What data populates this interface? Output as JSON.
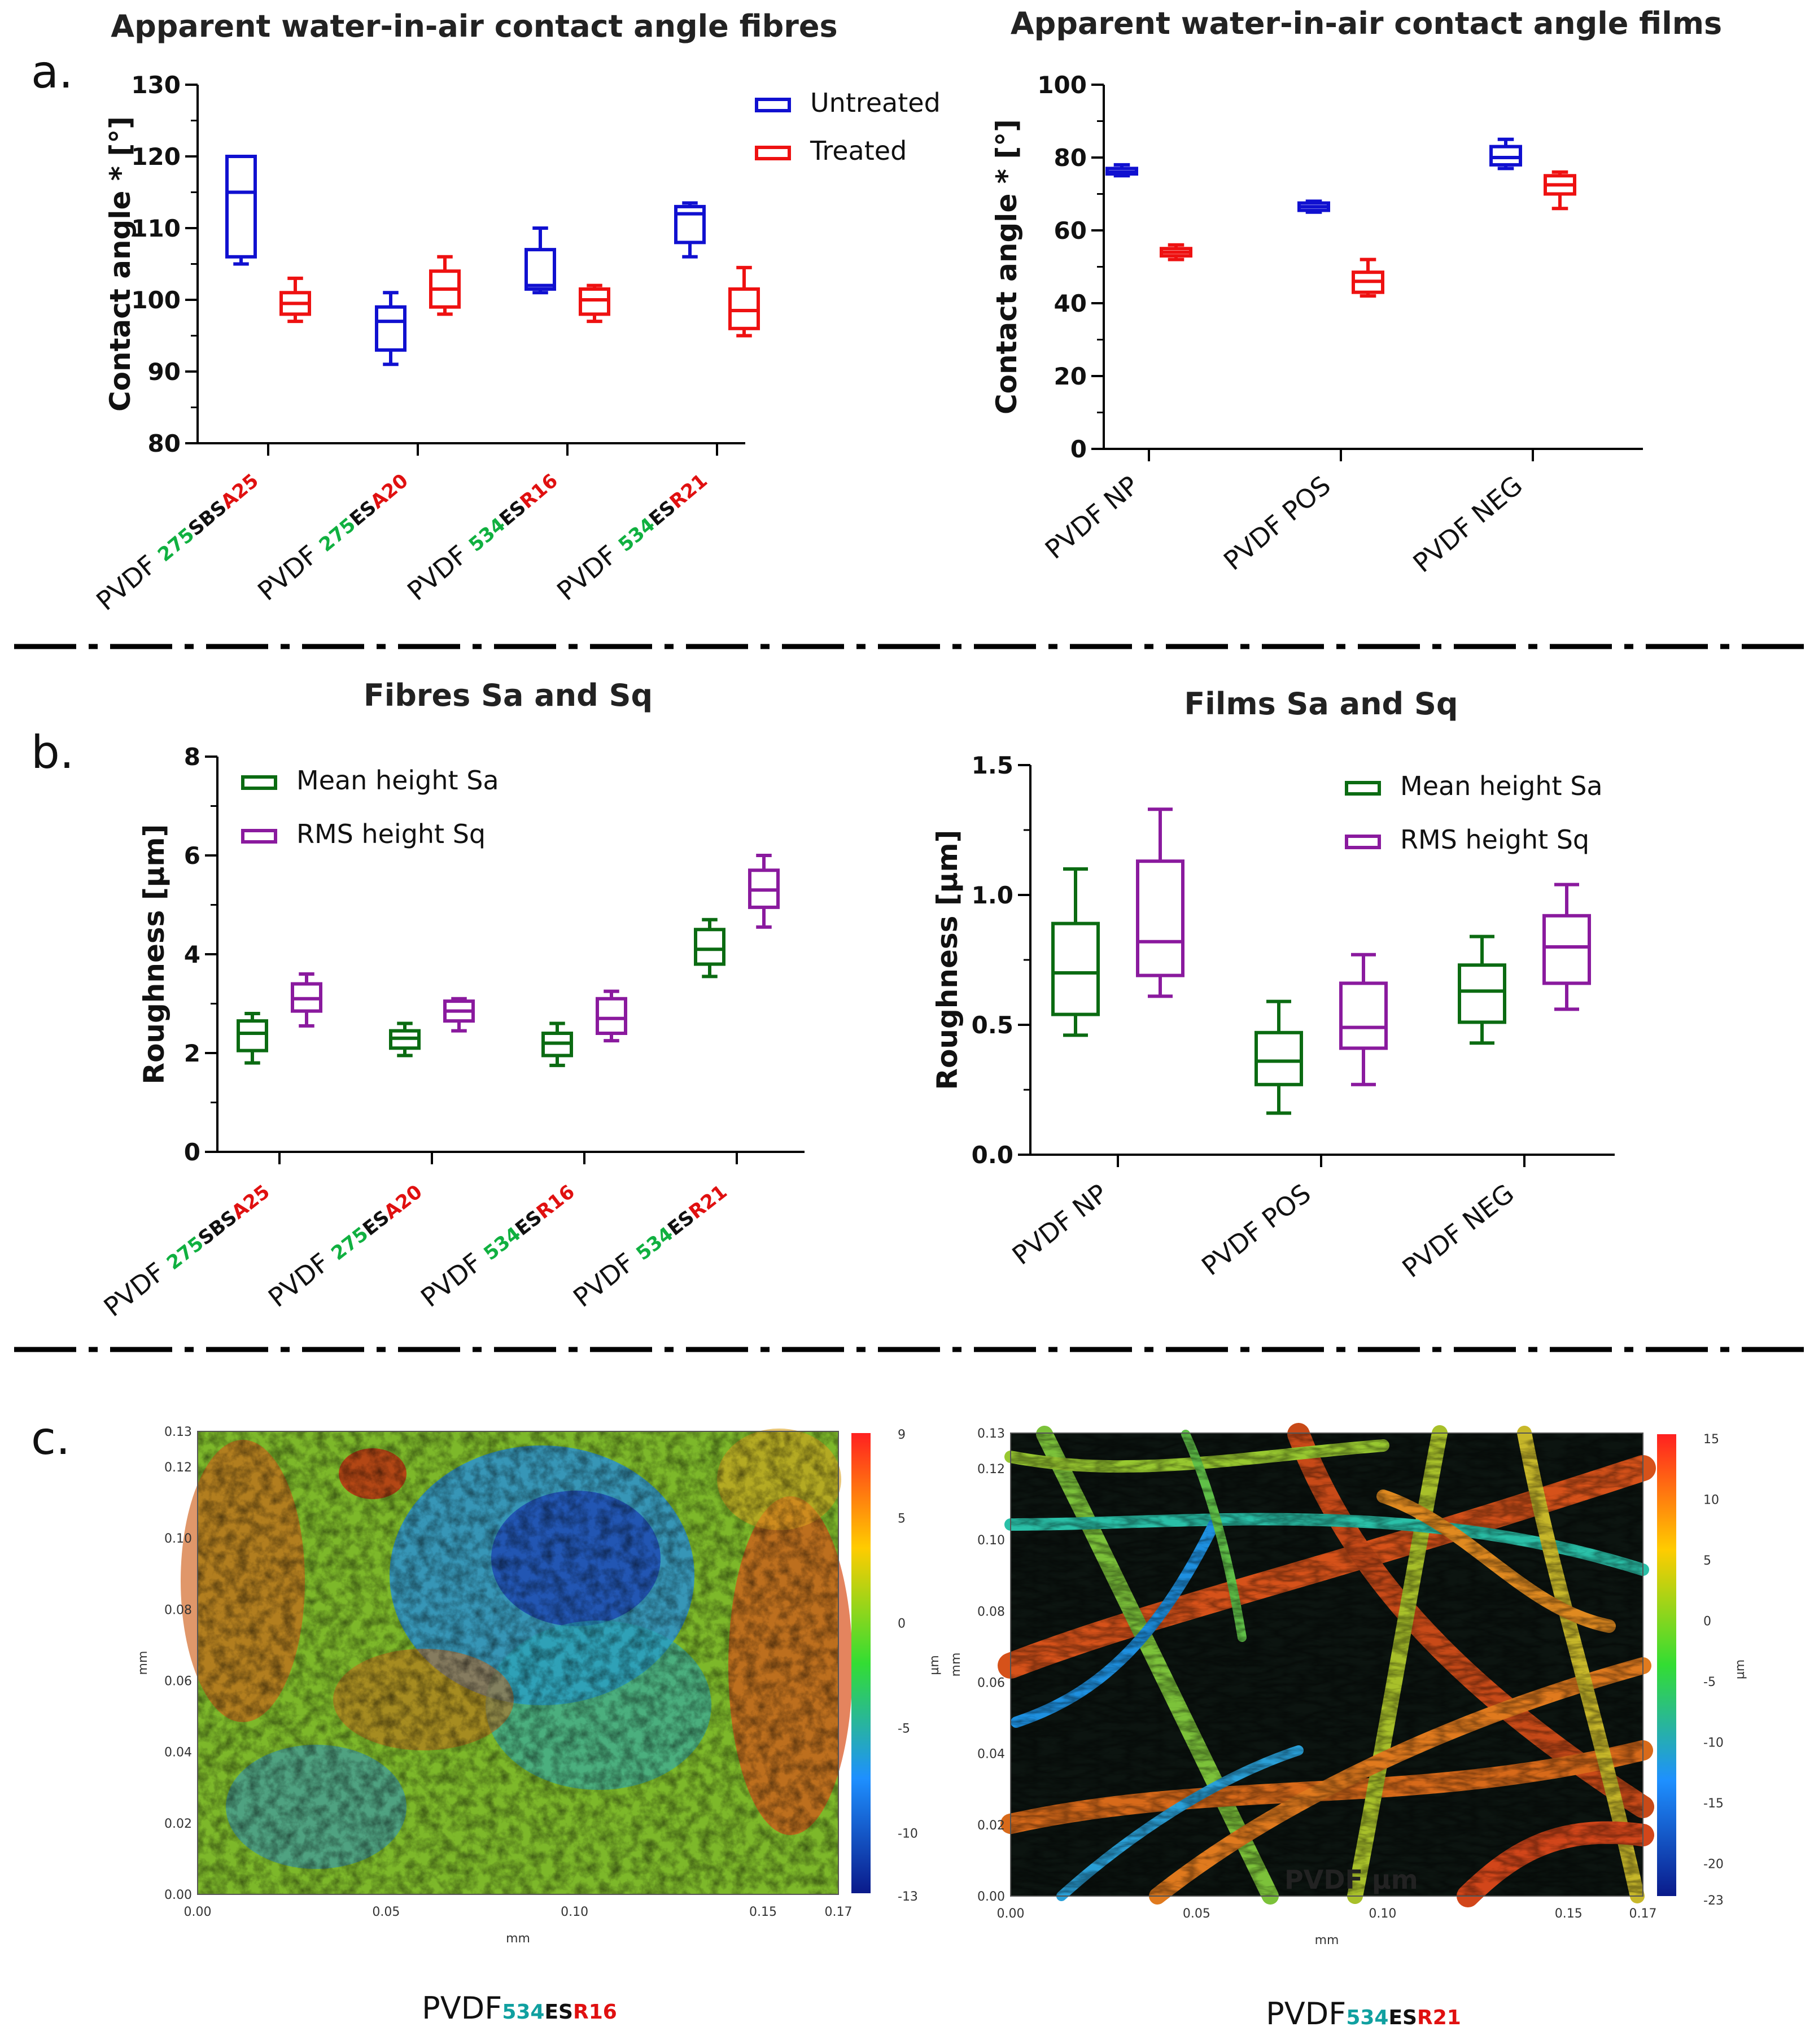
{
  "panel_labels": [
    "a.",
    "b.",
    "c."
  ],
  "colors": {
    "untreated": "#1010d0",
    "treated": "#ee1111",
    "sa": "#0b6b12",
    "sq": "#8a1a9e",
    "sample_green": "#10b040",
    "sample_red": "#e01010",
    "sample_purple": "#7a1aa8",
    "caption_teal": "#10a0a0"
  },
  "chart_data": [
    {
      "id": "a1",
      "type": "box",
      "title": "Apparent water-in-air contact angle fibres",
      "ylabel": "Contact angle * [°]",
      "ylim": [
        80,
        130
      ],
      "yticks": [
        80,
        90,
        100,
        110,
        120,
        130
      ],
      "categories": [
        [
          {
            "t": "PVDF ",
            "c": "black"
          },
          {
            "t": "275",
            "c": "green",
            "s": 1
          },
          {
            "t": "SBS",
            "c": "black",
            "s": 1
          },
          {
            "t": "A25",
            "c": "red",
            "s": 1
          }
        ],
        [
          {
            "t": "PVDF ",
            "c": "black"
          },
          {
            "t": "275",
            "c": "green",
            "s": 1
          },
          {
            "t": "ES",
            "c": "black",
            "s": 1
          },
          {
            "t": "A20",
            "c": "red",
            "s": 1
          }
        ],
        [
          {
            "t": "PVDF ",
            "c": "black"
          },
          {
            "t": "534",
            "c": "green",
            "s": 1
          },
          {
            "t": "ES",
            "c": "black",
            "s": 1
          },
          {
            "t": "R16",
            "c": "red",
            "s": 1
          }
        ],
        [
          {
            "t": "PVDF ",
            "c": "black"
          },
          {
            "t": "534",
            "c": "green",
            "s": 1
          },
          {
            "t": "ES",
            "c": "black",
            "s": 1
          },
          {
            "t": "R21",
            "c": "red",
            "s": 1
          }
        ]
      ],
      "legend": [
        "Untreated",
        "Treated"
      ],
      "legend_pos": "top-right",
      "series": [
        {
          "name": "Untreated",
          "color": "untreated",
          "boxes": [
            {
              "min": 105,
              "q1": 106,
              "median": 115,
              "q3": 120,
              "max": 120
            },
            {
              "min": 91,
              "q1": 93,
              "median": 97,
              "q3": 99,
              "max": 101
            },
            {
              "min": 101,
              "q1": 101.5,
              "median": 102,
              "q3": 107,
              "max": 110
            },
            {
              "min": 106,
              "q1": 108,
              "median": 112,
              "q3": 113,
              "max": 113.5
            }
          ]
        },
        {
          "name": "Treated",
          "color": "treated",
          "boxes": [
            {
              "min": 97,
              "q1": 98,
              "median": 99.5,
              "q3": 101,
              "max": 103
            },
            {
              "min": 98,
              "q1": 99,
              "median": 101.5,
              "q3": 104,
              "max": 106
            },
            {
              "min": 97,
              "q1": 98,
              "median": 100,
              "q3": 101.5,
              "max": 102
            },
            {
              "min": 95,
              "q1": 96,
              "median": 98.5,
              "q3": 101.5,
              "max": 104.5
            }
          ]
        }
      ]
    },
    {
      "id": "a2",
      "type": "box",
      "title": "Apparent water-in-air contact angle films",
      "ylabel": "Contact angle * [°]",
      "ylim": [
        0,
        100
      ],
      "yticks": [
        0,
        20,
        40,
        60,
        80,
        100
      ],
      "categories": [
        [
          {
            "t": "PVDF NP",
            "c": "black"
          }
        ],
        [
          {
            "t": "PVDF POS",
            "c": "black"
          }
        ],
        [
          {
            "t": "PVDF NEG",
            "c": "black"
          }
        ]
      ],
      "series": [
        {
          "name": "Untreated",
          "color": "untreated",
          "boxes": [
            {
              "min": 75,
              "q1": 75.5,
              "median": 76,
              "q3": 77,
              "max": 78
            },
            {
              "min": 65,
              "q1": 65.5,
              "median": 66.5,
              "q3": 67.5,
              "max": 68
            },
            {
              "min": 77,
              "q1": 78,
              "median": 80,
              "q3": 83,
              "max": 85
            }
          ]
        },
        {
          "name": "Treated",
          "color": "treated",
          "boxes": [
            {
              "min": 52,
              "q1": 53,
              "median": 54,
              "q3": 55,
              "max": 56
            },
            {
              "min": 42,
              "q1": 43,
              "median": 46,
              "q3": 48.5,
              "max": 52
            },
            {
              "min": 66,
              "q1": 70,
              "median": 72.5,
              "q3": 75,
              "max": 76
            }
          ]
        }
      ]
    },
    {
      "id": "b1",
      "type": "box",
      "title": "Fibres Sa and Sq",
      "ylabel": "Roughness [µm]",
      "ylim": [
        0,
        8
      ],
      "yticks": [
        0,
        2,
        4,
        6,
        8
      ],
      "categories": [
        [
          {
            "t": "PVDF ",
            "c": "black"
          },
          {
            "t": "275",
            "c": "green",
            "s": 1
          },
          {
            "t": "SBS",
            "c": "black",
            "s": 1
          },
          {
            "t": "A25",
            "c": "red",
            "s": 1
          }
        ],
        [
          {
            "t": "PVDF ",
            "c": "black"
          },
          {
            "t": "275",
            "c": "green",
            "s": 1
          },
          {
            "t": "ES",
            "c": "black",
            "s": 1
          },
          {
            "t": "A20",
            "c": "red",
            "s": 1
          }
        ],
        [
          {
            "t": "PVDF ",
            "c": "black"
          },
          {
            "t": "534",
            "c": "green",
            "s": 1
          },
          {
            "t": "ES",
            "c": "black",
            "s": 1
          },
          {
            "t": "R16",
            "c": "red",
            "s": 1
          }
        ],
        [
          {
            "t": "PVDF ",
            "c": "black"
          },
          {
            "t": "534",
            "c": "green",
            "s": 1
          },
          {
            "t": "ES",
            "c": "black",
            "s": 1
          },
          {
            "t": "R21",
            "c": "red",
            "s": 1
          }
        ]
      ],
      "legend": [
        "Mean height Sa",
        "RMS height Sq"
      ],
      "legend_pos": "top-left",
      "series": [
        {
          "name": "Mean height Sa",
          "color": "sa",
          "boxes": [
            {
              "min": 1.8,
              "q1": 2.05,
              "median": 2.4,
              "q3": 2.65,
              "max": 2.8
            },
            {
              "min": 1.95,
              "q1": 2.1,
              "median": 2.3,
              "q3": 2.45,
              "max": 2.6
            },
            {
              "min": 1.75,
              "q1": 1.95,
              "median": 2.2,
              "q3": 2.4,
              "max": 2.6
            },
            {
              "min": 3.55,
              "q1": 3.8,
              "median": 4.1,
              "q3": 4.5,
              "max": 4.7
            }
          ]
        },
        {
          "name": "RMS height Sq",
          "color": "sq",
          "boxes": [
            {
              "min": 2.55,
              "q1": 2.85,
              "median": 3.1,
              "q3": 3.4,
              "max": 3.6
            },
            {
              "min": 2.45,
              "q1": 2.65,
              "median": 2.85,
              "q3": 3.05,
              "max": 3.1
            },
            {
              "min": 2.25,
              "q1": 2.4,
              "median": 2.7,
              "q3": 3.1,
              "max": 3.25
            },
            {
              "min": 4.55,
              "q1": 4.95,
              "median": 5.3,
              "q3": 5.7,
              "max": 6.0
            }
          ]
        }
      ]
    },
    {
      "id": "b2",
      "type": "box",
      "title": "Films Sa and Sq",
      "ylabel": "Roughness [µm]",
      "ylim": [
        0,
        1.5
      ],
      "yticks": [
        0.0,
        0.5,
        1.0,
        1.5
      ],
      "ytick_labels": [
        "0.0",
        "0.5",
        "1.0",
        "1.5"
      ],
      "categories": [
        [
          {
            "t": "PVDF NP",
            "c": "black"
          }
        ],
        [
          {
            "t": "PVDF POS",
            "c": "black"
          }
        ],
        [
          {
            "t": "PVDF NEG",
            "c": "black"
          }
        ]
      ],
      "legend": [
        "Mean height Sa",
        "RMS height Sq"
      ],
      "legend_pos": "top-right",
      "series": [
        {
          "name": "Mean height Sa",
          "color": "sa",
          "boxes": [
            {
              "min": 0.46,
              "q1": 0.54,
              "median": 0.7,
              "q3": 0.89,
              "max": 1.1
            },
            {
              "min": 0.16,
              "q1": 0.27,
              "median": 0.36,
              "q3": 0.47,
              "max": 0.59
            },
            {
              "min": 0.43,
              "q1": 0.51,
              "median": 0.63,
              "q3": 0.73,
              "max": 0.84
            }
          ]
        },
        {
          "name": "RMS height Sq",
          "color": "sq",
          "boxes": [
            {
              "min": 0.61,
              "q1": 0.69,
              "median": 0.82,
              "q3": 1.13,
              "max": 1.33
            },
            {
              "min": 0.27,
              "q1": 0.41,
              "median": 0.49,
              "q3": 0.66,
              "max": 0.77
            },
            {
              "min": 0.56,
              "q1": 0.66,
              "median": 0.8,
              "q3": 0.92,
              "max": 1.04
            }
          ]
        }
      ]
    },
    {
      "id": "c1",
      "type": "heatmap",
      "xlabel": "mm",
      "ylabel": "mm",
      "unit": "µm",
      "xticks": [
        "0.00",
        "0.05",
        "0.10",
        "0.15",
        "0.17"
      ],
      "yticks": [
        "0.00",
        "0.02",
        "0.04",
        "0.06",
        "0.08",
        "0.10",
        "0.12",
        "0.13"
      ],
      "colorbar_ticks": [
        "9",
        "5",
        "0",
        "-5",
        "-10",
        "-13"
      ],
      "zlim": [
        -13,
        9
      ],
      "caption": [
        {
          "t": "PVDF",
          "c": "black"
        },
        {
          "t": "534",
          "c": "teal",
          "s": 1
        },
        {
          "t": "ES",
          "c": "black",
          "s": 1
        },
        {
          "t": "R16",
          "c": "red",
          "s": 1
        }
      ]
    },
    {
      "id": "c2",
      "type": "heatmap",
      "xlabel": "mm",
      "ylabel": "mm",
      "unit": "µm",
      "xticks": [
        "0.00",
        "0.05",
        "0.10",
        "0.15",
        "0.17"
      ],
      "yticks": [
        "0.00",
        "0.02",
        "0.04",
        "0.06",
        "0.08",
        "0.10",
        "0.12",
        "0.13"
      ],
      "colorbar_ticks": [
        "15",
        "10",
        "5",
        "0",
        "-5",
        "-10",
        "-15",
        "-20",
        "-23"
      ],
      "zlim": [
        -23,
        15
      ],
      "overlay": "PVDF µm",
      "caption": [
        {
          "t": "PVDF",
          "c": "black"
        },
        {
          "t": "534",
          "c": "teal",
          "s": 1
        },
        {
          "t": "ES",
          "c": "black",
          "s": 1
        },
        {
          "t": "R21",
          "c": "red",
          "s": 1
        }
      ]
    }
  ]
}
